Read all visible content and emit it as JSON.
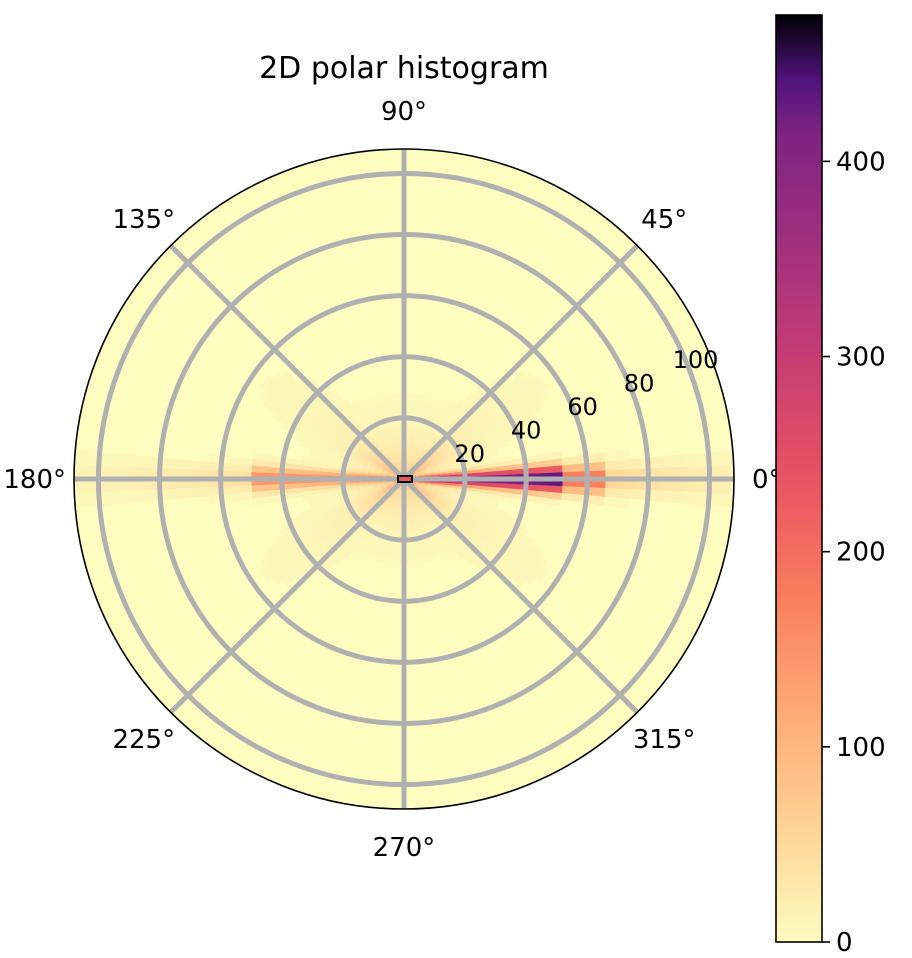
{
  "chart_data": {
    "type": "heatmap",
    "projection": "polar",
    "title": "2D polar histogram",
    "angle_ticks": [
      "0°",
      "45°",
      "90°",
      "135°",
      "180°",
      "225°",
      "270°",
      "315°"
    ],
    "angle_tick_degrees": [
      0,
      45,
      90,
      135,
      180,
      225,
      270,
      315
    ],
    "radius_ticks": [
      20,
      40,
      60,
      80,
      100
    ],
    "rlim": [
      0,
      108
    ],
    "grid": true,
    "colormap": "magma_r",
    "color_range": [
      0,
      475
    ],
    "colorbar": {
      "placement": "right",
      "ticks": [
        0,
        100,
        200,
        300,
        400
      ],
      "tick_labels": [
        "0",
        "100",
        "200",
        "300",
        "400"
      ]
    },
    "density_summary": [
      {
        "angle_deg": 0,
        "r_range": [
          0,
          50
        ],
        "count_estimate": 470
      },
      {
        "angle_deg": 0,
        "r_range": [
          50,
          65
        ],
        "count_estimate": 180
      },
      {
        "angle_deg": 0,
        "r_range": [
          65,
          100
        ],
        "count_estimate": 40
      },
      {
        "angle_deg": 180,
        "r_range": [
          0,
          50
        ],
        "count_estimate": 150
      },
      {
        "angle_deg": 180,
        "r_range": [
          50,
          100
        ],
        "count_estimate": 30
      },
      {
        "angle_deg": 0,
        "r_range": [
          0,
          2
        ],
        "count_estimate": 475
      }
    ],
    "colors": {
      "grid": "#b0b0b0",
      "background": "#fcfdbf"
    }
  }
}
